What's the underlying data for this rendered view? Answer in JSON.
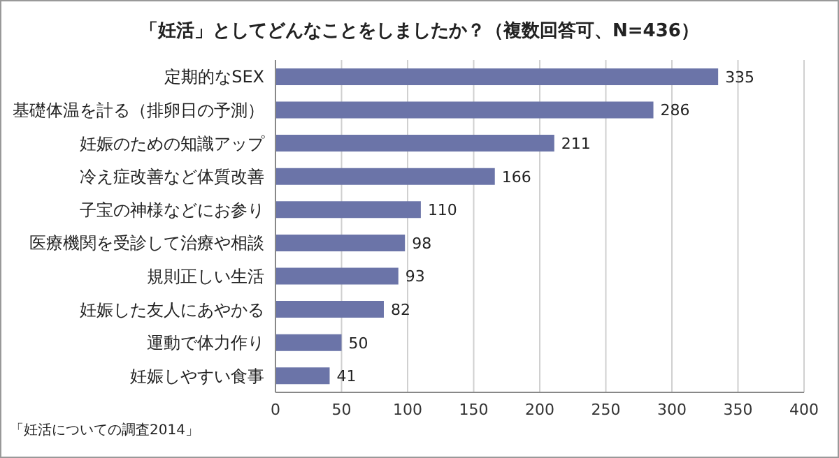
{
  "chart_data": {
    "type": "bar",
    "orientation": "horizontal",
    "title": "「妊活」としてどんなことをしましたか？（複数回答可、N=436）",
    "categories": [
      "定期的なSEX",
      "基礎体温を計る（排卵日の予測）",
      "妊娠のための知識アップ",
      "冷え症改善など体質改善",
      "子宝の神様などにお参り",
      "医療機関を受診して治療や相談",
      "規則正しい生活",
      "妊娠した友人にあやかる",
      "運動で体力作り",
      "妊娠しやすい食事"
    ],
    "values": [
      335,
      286,
      211,
      166,
      110,
      98,
      93,
      82,
      50,
      41
    ],
    "color": "#6b74a8",
    "xlim": [
      0,
      400
    ],
    "xticks": [
      0,
      50,
      100,
      150,
      200,
      250,
      300,
      350,
      400
    ],
    "grid": "x",
    "data_labels": true,
    "annotations": [
      "「妊活についての調査2014」"
    ]
  }
}
